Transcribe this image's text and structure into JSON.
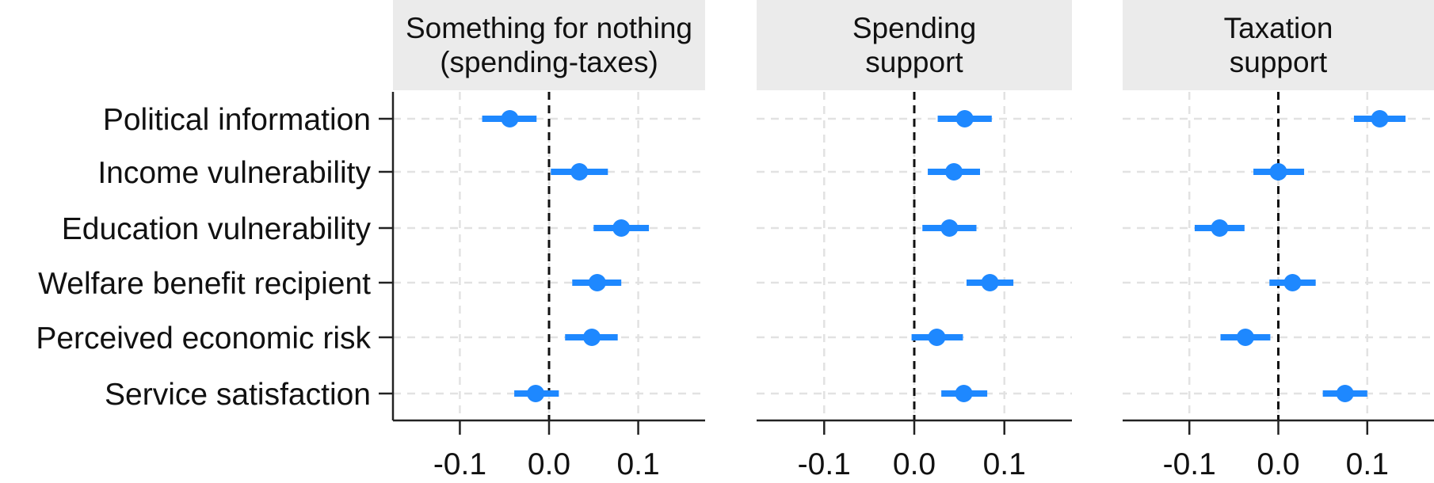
{
  "chart_data": {
    "type": "scatter",
    "subtype": "coefficient-plot-with-confidence-intervals",
    "point_color": "#1E88FF",
    "categories": [
      "Political information",
      "Income vulnerability",
      "Education vulnerability",
      "Welfare benefit recipient",
      "Perceived economic risk",
      "Service satisfaction"
    ],
    "xlim": [
      -0.175,
      0.175
    ],
    "xticks": [
      -0.1,
      0.0,
      0.1
    ],
    "xtick_labels": [
      "-0.1",
      "0.0",
      "0.1"
    ],
    "reference_line": 0.0,
    "grid": true,
    "panels": [
      {
        "title_lines": [
          "Something for nothing",
          "(spending-taxes)"
        ],
        "estimates": [
          -0.044,
          0.034,
          0.081,
          0.054,
          0.048,
          -0.015
        ],
        "ci_low": [
          -0.075,
          0.002,
          0.05,
          0.026,
          0.018,
          -0.039
        ],
        "ci_high": [
          -0.014,
          0.066,
          0.112,
          0.081,
          0.077,
          0.011
        ]
      },
      {
        "title_lines": [
          "Spending",
          "support"
        ],
        "estimates": [
          0.056,
          0.044,
          0.039,
          0.084,
          0.025,
          0.055
        ],
        "ci_low": [
          0.026,
          0.015,
          0.009,
          0.058,
          -0.003,
          0.03
        ],
        "ci_high": [
          0.086,
          0.073,
          0.069,
          0.11,
          0.054,
          0.081
        ]
      },
      {
        "title_lines": [
          "Taxation",
          "support"
        ],
        "estimates": [
          0.114,
          0.0,
          -0.066,
          0.016,
          -0.037,
          0.075
        ],
        "ci_low": [
          0.085,
          -0.028,
          -0.094,
          -0.01,
          -0.065,
          0.05
        ],
        "ci_high": [
          0.143,
          0.029,
          -0.038,
          0.042,
          -0.009,
          0.1
        ]
      }
    ]
  }
}
